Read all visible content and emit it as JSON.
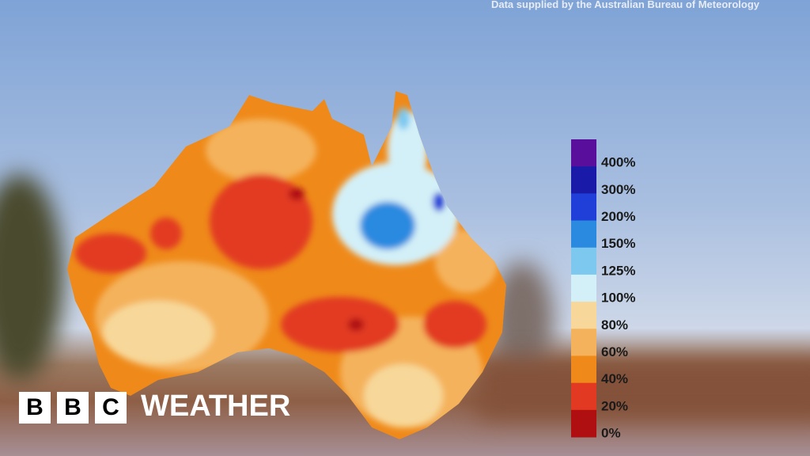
{
  "source": "Data supplied by the Australian Bureau of Meteorology",
  "legend": [
    {
      "label": "400%",
      "color": "#5a0f9c"
    },
    {
      "label": "300%",
      "color": "#1a1aa8"
    },
    {
      "label": "200%",
      "color": "#1f3fd8"
    },
    {
      "label": "150%",
      "color": "#2a8ae0"
    },
    {
      "label": "125%",
      "color": "#7cc8ef"
    },
    {
      "label": "100%",
      "color": "#d3f0f8"
    },
    {
      "label": "80%",
      "color": "#f7d89a"
    },
    {
      "label": "60%",
      "color": "#f4b25c"
    },
    {
      "label": "40%",
      "color": "#ef8a1a"
    },
    {
      "label": "20%",
      "color": "#e23a22"
    },
    {
      "label": "0%",
      "color": "#b00f12"
    }
  ],
  "logo": {
    "letters": [
      "B",
      "B",
      "C"
    ],
    "text": "WEATHER"
  }
}
